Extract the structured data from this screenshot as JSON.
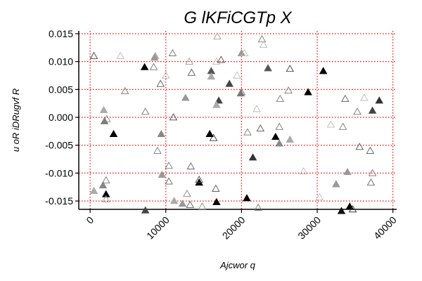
{
  "chart_data": {
    "type": "scatter",
    "title": "G lKFiCGTp X",
    "xlabel": "Ajcwor q",
    "ylabel": "u oR iDRugvf R",
    "xlim": [
      -1500,
      40500
    ],
    "ylim": [
      -0.0165,
      0.0155
    ],
    "xticks": [
      0,
      10000,
      20000,
      30000,
      40000
    ],
    "xtick_labels": [
      "0",
      "10000",
      "20000",
      "30000",
      "40000"
    ],
    "yticks": [
      -0.015,
      -0.01,
      -0.005,
      0.0,
      0.005,
      0.01,
      0.015
    ],
    "ytick_labels": [
      "-0.015",
      "-0.010",
      "-0.005",
      "0.000",
      "0.005",
      "0.010",
      "0.015"
    ],
    "grid": true,
    "grid_style": "red-dotted",
    "marker": "triangle-up",
    "colors": {
      "grid": "#ff0000",
      "axis": "#000000"
    },
    "points": [
      {
        "x": 7300,
        "y": -0.0167,
        "filled": true,
        "shade": "#444444"
      },
      {
        "x": 33200,
        "y": -0.0168,
        "filled": true,
        "shade": "#111111"
      },
      {
        "x": 34300,
        "y": -0.016,
        "filled": true,
        "shade": "#000000"
      },
      {
        "x": 34700,
        "y": -0.0165,
        "filled": false,
        "shade": "#333333"
      },
      {
        "x": 16700,
        "y": -0.0152,
        "filled": true,
        "shade": "#000000"
      },
      {
        "x": 13200,
        "y": -0.0157,
        "filled": false,
        "shade": "#555555"
      },
      {
        "x": 12200,
        "y": -0.0155,
        "filled": true,
        "shade": "#999999"
      },
      {
        "x": 11100,
        "y": -0.015,
        "filled": true,
        "shade": "#aaaaaa"
      },
      {
        "x": 14800,
        "y": -0.016,
        "filled": false,
        "shade": "#888888"
      },
      {
        "x": 20700,
        "y": -0.0145,
        "filled": true,
        "shade": "#000000"
      },
      {
        "x": 22200,
        "y": -0.0162,
        "filled": false,
        "shade": "#777777"
      },
      {
        "x": 30300,
        "y": -0.0143,
        "filled": false,
        "shade": "#bbbbbb"
      },
      {
        "x": 2100,
        "y": -0.0138,
        "filled": true,
        "shade": "#000000"
      },
      {
        "x": 1700,
        "y": -0.0122,
        "filled": true,
        "shade": "#888888"
      },
      {
        "x": 2100,
        "y": -0.0113,
        "filled": false,
        "shade": "#777777"
      },
      {
        "x": 500,
        "y": -0.0132,
        "filled": true,
        "shade": "#aaaaaa"
      },
      {
        "x": 2100,
        "y": -0.0147,
        "filled": false,
        "shade": "#999999"
      },
      {
        "x": 10400,
        "y": -0.0115,
        "filled": false,
        "shade": "#666666"
      },
      {
        "x": 14400,
        "y": -0.0117,
        "filled": true,
        "shade": "#000000"
      },
      {
        "x": 14400,
        "y": -0.0112,
        "filled": false,
        "shade": "#444444"
      },
      {
        "x": 12800,
        "y": -0.0137,
        "filled": false,
        "shade": "#888888"
      },
      {
        "x": 16600,
        "y": -0.0128,
        "filled": false,
        "shade": "#555555"
      },
      {
        "x": 9500,
        "y": -0.0103,
        "filled": true,
        "shade": "#999999"
      },
      {
        "x": 10400,
        "y": -0.0087,
        "filled": false,
        "shade": "#777777"
      },
      {
        "x": 13300,
        "y": -0.0088,
        "filled": false,
        "shade": "#666666"
      },
      {
        "x": 21500,
        "y": -0.0072,
        "filled": true,
        "shade": "#333333"
      },
      {
        "x": 28200,
        "y": -0.0097,
        "filled": false,
        "shade": "#bbbbbb"
      },
      {
        "x": 32500,
        "y": -0.012,
        "filled": true,
        "shade": "#999999"
      },
      {
        "x": 34000,
        "y": -0.0098,
        "filled": true,
        "shade": "#999999"
      },
      {
        "x": 37300,
        "y": -0.01,
        "filled": false,
        "shade": "#777777"
      },
      {
        "x": 37100,
        "y": -0.0117,
        "filled": false,
        "shade": "#666666"
      },
      {
        "x": 8900,
        "y": -0.006,
        "filled": false,
        "shade": "#777777"
      },
      {
        "x": 9400,
        "y": -0.003,
        "filled": true,
        "shade": "#888888"
      },
      {
        "x": 16300,
        "y": -0.0037,
        "filled": false,
        "shade": "#333333"
      },
      {
        "x": 15800,
        "y": -0.003,
        "filled": true,
        "shade": "#000000"
      },
      {
        "x": 24500,
        "y": -0.0035,
        "filled": true,
        "shade": "#000000"
      },
      {
        "x": 25000,
        "y": -0.0047,
        "filled": true,
        "shade": "#888888"
      },
      {
        "x": 26400,
        "y": -0.004,
        "filled": true,
        "shade": "#aaaaaa"
      },
      {
        "x": 20800,
        "y": -0.0027,
        "filled": false,
        "shade": "#777777"
      },
      {
        "x": 22500,
        "y": -0.002,
        "filled": false,
        "shade": "#555555"
      },
      {
        "x": 25000,
        "y": -0.0017,
        "filled": false,
        "shade": "#777777"
      },
      {
        "x": 31800,
        "y": -0.0013,
        "filled": false,
        "shade": "#bbbbbb"
      },
      {
        "x": 33400,
        "y": -0.0017,
        "filled": false,
        "shade": "#777777"
      },
      {
        "x": 35600,
        "y": -0.0053,
        "filled": false,
        "shade": "#555555"
      },
      {
        "x": 37000,
        "y": -0.006,
        "filled": false,
        "shade": "#555555"
      },
      {
        "x": 3100,
        "y": -0.003,
        "filled": true,
        "shade": "#000000"
      },
      {
        "x": 1900,
        "y": -0.0007,
        "filled": true,
        "shade": "#777777"
      },
      {
        "x": 1800,
        "y": 0.0013,
        "filled": true,
        "shade": "#aaaaaa"
      },
      {
        "x": 2200,
        "y": -0.0003,
        "filled": false,
        "shade": "#888888"
      },
      {
        "x": 11000,
        "y": 0.0,
        "filled": false,
        "shade": "#444444"
      },
      {
        "x": 7300,
        "y": 0.001,
        "filled": false,
        "shade": "#777777"
      },
      {
        "x": 22000,
        "y": 0.0015,
        "filled": false,
        "shade": "#bbbbbb"
      },
      {
        "x": 35300,
        "y": 0.001,
        "filled": false,
        "shade": "#777777"
      },
      {
        "x": 37300,
        "y": 0.0012,
        "filled": true,
        "shade": "#444444"
      },
      {
        "x": 38200,
        "y": 0.003,
        "filled": true,
        "shade": "#333333"
      },
      {
        "x": 36200,
        "y": 0.0035,
        "filled": false,
        "shade": "#bbbbbb"
      },
      {
        "x": 33700,
        "y": 0.0033,
        "filled": false,
        "shade": "#555555"
      },
      {
        "x": 28800,
        "y": 0.0045,
        "filled": true,
        "shade": "#000000"
      },
      {
        "x": 26200,
        "y": 0.0048,
        "filled": false,
        "shade": "#777777"
      },
      {
        "x": 25100,
        "y": 0.0033,
        "filled": false,
        "shade": "#777777"
      },
      {
        "x": 17000,
        "y": 0.003,
        "filled": true,
        "shade": "#444444"
      },
      {
        "x": 16700,
        "y": 0.0022,
        "filled": true,
        "shade": "#aaaaaa"
      },
      {
        "x": 12600,
        "y": 0.0035,
        "filled": true,
        "shade": "#999999"
      },
      {
        "x": 9300,
        "y": 0.006,
        "filled": false,
        "shade": "#555555"
      },
      {
        "x": 4600,
        "y": 0.0047,
        "filled": false,
        "shade": "#777777"
      },
      {
        "x": 19900,
        "y": 0.0043,
        "filled": true,
        "shade": "#777777"
      },
      {
        "x": 20000,
        "y": 0.0045,
        "filled": false,
        "shade": "#777777"
      },
      {
        "x": 18400,
        "y": 0.006,
        "filled": true,
        "shade": "#444444"
      },
      {
        "x": 19400,
        "y": 0.0075,
        "filled": false,
        "shade": "#bbbbbb"
      },
      {
        "x": 16000,
        "y": 0.0083,
        "filled": true,
        "shade": "#555555"
      },
      {
        "x": 16000,
        "y": 0.0073,
        "filled": true,
        "shade": "#aaaaaa"
      },
      {
        "x": 13400,
        "y": 0.008,
        "filled": false,
        "shade": "#555555"
      },
      {
        "x": 10000,
        "y": 0.0075,
        "filled": false,
        "shade": "#bbbbbb"
      },
      {
        "x": 7200,
        "y": 0.009,
        "filled": true,
        "shade": "#000000"
      },
      {
        "x": 8400,
        "y": 0.009,
        "filled": false,
        "shade": "#777777"
      },
      {
        "x": 8600,
        "y": 0.011,
        "filled": true,
        "shade": "#aaaaaa"
      },
      {
        "x": 8500,
        "y": 0.0107,
        "filled": true,
        "shade": "#999999"
      },
      {
        "x": 10900,
        "y": 0.0115,
        "filled": false,
        "shade": "#777777"
      },
      {
        "x": 13100,
        "y": 0.01,
        "filled": false,
        "shade": "#999999"
      },
      {
        "x": 16700,
        "y": 0.01,
        "filled": false,
        "shade": "#bbbbbb"
      },
      {
        "x": 17300,
        "y": 0.0103,
        "filled": false,
        "shade": "#555555"
      },
      {
        "x": 16800,
        "y": 0.0145,
        "filled": false,
        "shade": "#999999"
      },
      {
        "x": 20000,
        "y": 0.0115,
        "filled": true,
        "shade": "#999999"
      },
      {
        "x": 20400,
        "y": 0.0115,
        "filled": false,
        "shade": "#bbbbbb"
      },
      {
        "x": 22700,
        "y": 0.014,
        "filled": false,
        "shade": "#777777"
      },
      {
        "x": 22900,
        "y": 0.013,
        "filled": false,
        "shade": "#bbbbbb"
      },
      {
        "x": 23500,
        "y": 0.0088,
        "filled": true,
        "shade": "#555555"
      },
      {
        "x": 26400,
        "y": 0.0087,
        "filled": false,
        "shade": "#444444"
      },
      {
        "x": 30800,
        "y": 0.0083,
        "filled": true,
        "shade": "#000000"
      },
      {
        "x": 4000,
        "y": 0.011,
        "filled": false,
        "shade": "#bbbbbb"
      },
      {
        "x": 500,
        "y": 0.011,
        "filled": false,
        "shade": "#444444"
      }
    ]
  }
}
